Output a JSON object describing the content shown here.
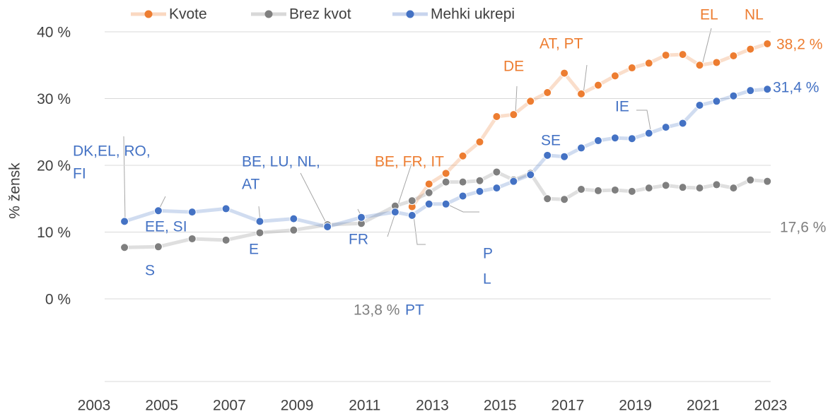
{
  "chart_data": {
    "type": "line",
    "y_label": "% žensk",
    "xlim": [
      2003,
      2023
    ],
    "xticks": [
      2003,
      2005,
      2007,
      2009,
      2011,
      2013,
      2015,
      2017,
      2019,
      2021,
      2023
    ],
    "ylim": [
      0,
      40
    ],
    "yticks": [
      {
        "value": 0,
        "label": "0 %"
      },
      {
        "value": 10,
        "label": "10 %"
      },
      {
        "value": 20,
        "label": "20 %"
      },
      {
        "value": 30,
        "label": "30 %"
      },
      {
        "value": 40,
        "label": "40 %"
      }
    ],
    "grid": true,
    "legend": "top",
    "x": [
      2003.9,
      2004.9,
      2005.9,
      2006.9,
      2007.9,
      2008.9,
      2009.9,
      2010.9,
      2011.9,
      2012.4,
      2012.9,
      2013.4,
      2013.9,
      2014.4,
      2014.9,
      2015.4,
      2015.9,
      2016.4,
      2016.9,
      2017.4,
      2017.9,
      2018.4,
      2018.9,
      2019.4,
      2019.9,
      2020.4,
      2020.9,
      2021.4,
      2021.9,
      2022.4,
      2022.9
    ],
    "series": [
      {
        "name": "Kvote",
        "color": "#ed7d31",
        "values": [
          null,
          null,
          null,
          null,
          null,
          null,
          null,
          null,
          null,
          13.8,
          17.2,
          18.8,
          21.4,
          23.5,
          27.3,
          27.6,
          29.6,
          30.9,
          33.8,
          30.7,
          32.0,
          33.4,
          34.6,
          35.3,
          36.5,
          36.6,
          35.0,
          35.4,
          36.4,
          37.4,
          38.2
        ]
      },
      {
        "name": "Brez kvot",
        "color": "#7f7f7f",
        "values": [
          7.7,
          7.8,
          9.0,
          8.8,
          9.9,
          10.3,
          11.1,
          11.3,
          13.9,
          14.7,
          15.9,
          17.5,
          17.5,
          17.7,
          19.0,
          17.8,
          18.8,
          15.0,
          14.9,
          16.4,
          16.2,
          16.3,
          16.1,
          16.6,
          17.0,
          16.7,
          16.6,
          17.1,
          16.6,
          17.8,
          17.6
        ]
      },
      {
        "name": "Mehki ukrepi",
        "color": "#4472c4",
        "values": [
          11.6,
          13.2,
          13.0,
          13.5,
          11.6,
          12.0,
          10.8,
          12.2,
          13.0,
          12.5,
          14.2,
          14.2,
          15.4,
          16.1,
          16.6,
          17.6,
          18.6,
          21.5,
          21.3,
          22.6,
          23.7,
          24.1,
          24.0,
          24.8,
          25.7,
          26.3,
          29.0,
          29.6,
          30.4,
          31.2,
          31.4
        ]
      }
    ],
    "annotations": [
      {
        "text": "DK,EL, RO,",
        "color": "#4472c4"
      },
      {
        "text": "FI",
        "color": "#4472c4"
      },
      {
        "text": "BE, LU, NL,",
        "color": "#4472c4"
      },
      {
        "text": "AT",
        "color": "#4472c4"
      },
      {
        "text": "EE, SI",
        "color": "#4472c4"
      },
      {
        "text": "S",
        "color": "#4472c4"
      },
      {
        "text": "E",
        "color": "#4472c4"
      },
      {
        "text": "FR",
        "color": "#4472c4"
      },
      {
        "text": "BE, FR, IT",
        "color": "#ed7d31"
      },
      {
        "text": "SE",
        "color": "#4472c4"
      },
      {
        "text": "IE",
        "color": "#4472c4"
      },
      {
        "text": "P",
        "color": "#4472c4"
      },
      {
        "text": "L",
        "color": "#4472c4"
      },
      {
        "text": "13,8 %",
        "color": "#7f7f7f"
      },
      {
        "text": "PT",
        "color": "#4472c4"
      },
      {
        "text": "DE",
        "color": "#ed7d31"
      },
      {
        "text": "AT, PT",
        "color": "#ed7d31"
      },
      {
        "text": "EL",
        "color": "#ed7d31"
      },
      {
        "text": "NL",
        "color": "#ed7d31"
      },
      {
        "text": "38,2 %",
        "color": "#ed7d31"
      },
      {
        "text": "31,4 %",
        "color": "#4472c4"
      },
      {
        "text": "17,6 %",
        "color": "#7f7f7f"
      }
    ]
  }
}
